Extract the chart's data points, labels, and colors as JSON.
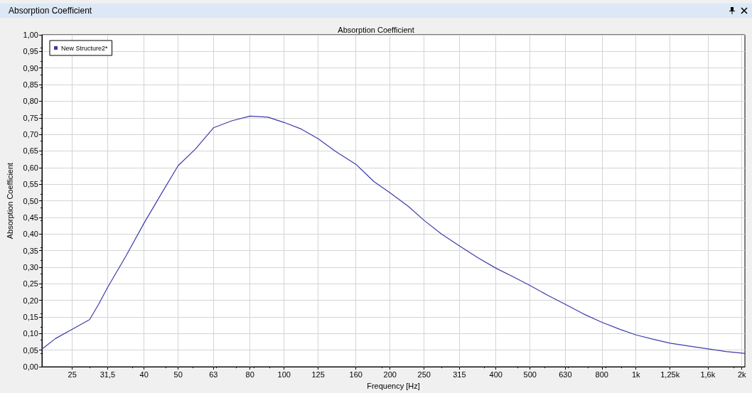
{
  "chart_data": {
    "type": "line",
    "title": "Absorption Coefficient",
    "subtitle": "Absorption Coefficient",
    "xlabel": "Frequency [Hz]",
    "ylabel": "Absorption Coefficient",
    "log": "x",
    "grid": true,
    "legend": "top left",
    "marker": "none",
    "line_style": "solid",
    "xlim": [
      20.5,
      2040
    ],
    "xticks": [
      25,
      {
        "value": 31.5,
        "label": "31,5"
      },
      40,
      50,
      63,
      80,
      100,
      125,
      160,
      200,
      250,
      315,
      400,
      500,
      630,
      800,
      {
        "value": 1000,
        "label": "1k"
      },
      {
        "value": 1250,
        "label": "1,25k"
      },
      {
        "value": 1600,
        "label": "1,6k"
      },
      {
        "value": 2000,
        "label": "2k"
      }
    ],
    "ylim": [
      0,
      1
    ],
    "yticks": [
      {
        "value": 0,
        "label": "0,00"
      },
      {
        "value": 0.05,
        "label": "0,05"
      },
      {
        "value": 0.1,
        "label": "0,10"
      },
      {
        "value": 0.15,
        "label": "0,15"
      },
      {
        "value": 0.2,
        "label": "0,20"
      },
      {
        "value": 0.25,
        "label": "0,25"
      },
      {
        "value": 0.3,
        "label": "0,30"
      },
      {
        "value": 0.35,
        "label": "0,35"
      },
      {
        "value": 0.4,
        "label": "0,40"
      },
      {
        "value": 0.45,
        "label": "0,45"
      },
      {
        "value": 0.5,
        "label": "0,50"
      },
      {
        "value": 0.55,
        "label": "0,55"
      },
      {
        "value": 0.6,
        "label": "0,60"
      },
      {
        "value": 0.65,
        "label": "0,65"
      },
      {
        "value": 0.7,
        "label": "0,70"
      },
      {
        "value": 0.75,
        "label": "0,75"
      },
      {
        "value": 0.8,
        "label": "0,80"
      },
      {
        "value": 0.85,
        "label": "0,85"
      },
      {
        "value": 0.9,
        "label": "0,90"
      },
      {
        "value": 0.95,
        "label": "0,95"
      },
      {
        "value": 1,
        "label": "1,00"
      }
    ],
    "series": [
      {
        "name": "New Structure2*",
        "color": "#3c3ca8",
        "x": [
          20.5,
          22.4,
          25,
          28,
          29.7,
          31.5,
          35.5,
          40,
          45,
          50,
          56,
          63,
          71,
          80,
          90,
          100,
          112,
          125,
          140,
          160,
          180,
          200,
          225,
          250,
          280,
          315,
          355,
          400,
          450,
          500,
          560,
          630,
          710,
          800,
          900,
          1000,
          1120,
          1250,
          1400,
          1600,
          1800,
          2000,
          2040
        ],
        "values": [
          0.053,
          0.085,
          0.113,
          0.142,
          0.188,
          0.239,
          0.333,
          0.433,
          0.525,
          0.606,
          0.656,
          0.72,
          0.741,
          0.755,
          0.752,
          0.736,
          0.716,
          0.687,
          0.649,
          0.61,
          0.558,
          0.524,
          0.484,
          0.441,
          0.4,
          0.364,
          0.329,
          0.297,
          0.27,
          0.245,
          0.216,
          0.188,
          0.159,
          0.134,
          0.113,
          0.096,
          0.083,
          0.071,
          0.063,
          0.054,
          0.046,
          0.041,
          0.04
        ]
      }
    ]
  }
}
